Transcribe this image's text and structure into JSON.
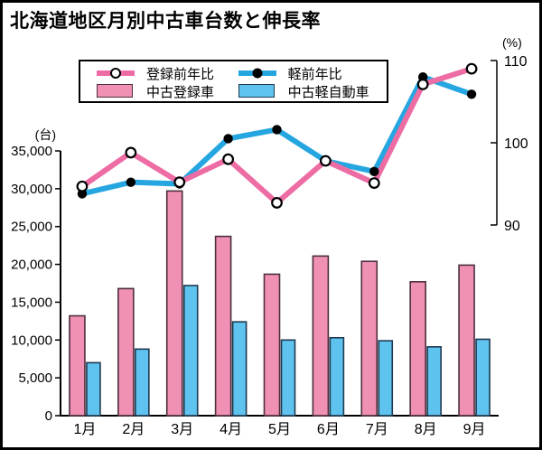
{
  "title": "北海道地区月別中古車台数と伸長率",
  "chart_data": {
    "type": "bar+line",
    "categories": [
      "1月",
      "2月",
      "3月",
      "4月",
      "5月",
      "6月",
      "7月",
      "8月",
      "9月"
    ],
    "series": [
      {
        "name": "中古登録車",
        "type": "bar",
        "axis": "left",
        "fill": "#f090b4",
        "stroke": "#4d2f3d",
        "values": [
          13200,
          16800,
          29700,
          23700,
          18700,
          21100,
          20400,
          17700,
          19900
        ]
      },
      {
        "name": "中古軽自動車",
        "type": "bar",
        "axis": "left",
        "fill": "#5fc3ef",
        "stroke": "#1f3950",
        "values": [
          7000,
          8800,
          17200,
          12400,
          10000,
          10300,
          9900,
          9100,
          10100
        ]
      },
      {
        "name": "登録前年比",
        "type": "line",
        "axis": "right",
        "color": "#ed6ca4",
        "marker": "open-circle",
        "values": [
          94.7,
          98.8,
          95.2,
          98.0,
          92.7,
          97.8,
          95.1,
          107.1,
          109.0
        ]
      },
      {
        "name": "軽前年比",
        "type": "line",
        "axis": "right",
        "color": "#25a6e0",
        "marker": "filled-circle",
        "values": [
          93.8,
          95.2,
          95.0,
          100.5,
          101.6,
          97.8,
          96.5,
          108.0,
          105.9
        ]
      }
    ],
    "left_axis": {
      "unit": "(台)",
      "min": 0,
      "max": 35000,
      "ticks": [
        0,
        5000,
        10000,
        15000,
        20000,
        25000,
        30000,
        35000
      ],
      "tick_labels": [
        "0",
        "5,000",
        "10,000",
        "15,000",
        "20,000",
        "25,000",
        "30,000",
        "35,000"
      ]
    },
    "right_axis": {
      "unit": "(%)",
      "min": 90,
      "max": 110,
      "ticks": [
        90,
        100,
        110
      ],
      "tick_labels": [
        "90",
        "100",
        "110"
      ]
    },
    "legend_position": "top-center",
    "grid": false,
    "colors": {
      "bar_registered": "#f090b4",
      "bar_kei": "#5fc3ef",
      "line_registered": "#ed6ca4",
      "line_kei": "#25a6e0",
      "axis": "#000000"
    }
  }
}
